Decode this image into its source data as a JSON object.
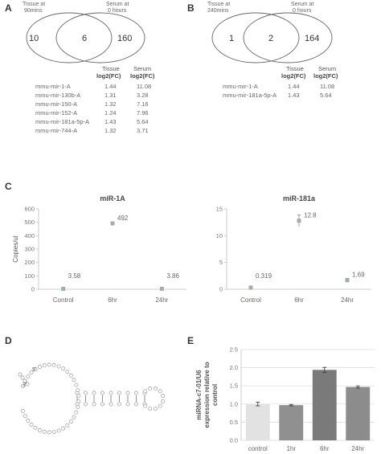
{
  "panels": {
    "A": {
      "letter": "A",
      "left_label_line1": "Tissue at",
      "left_label_line2": "90mins",
      "right_label_line1": "Serum at",
      "right_label_line2": "0 hours",
      "left_only": "10",
      "overlap": "6",
      "right_only": "160",
      "table": {
        "col1_line1": "Tissue",
        "col1_line2": "log2(FC)",
        "col2_line1": "Serum",
        "col2_line2": "log2(FC)",
        "rows": [
          {
            "name": "mmu-mir-1-A",
            "tissue": "1.44",
            "serum": "11.08"
          },
          {
            "name": "mmu-mir-130b-A",
            "tissue": "1.31",
            "serum": "3.28"
          },
          {
            "name": "mmu-mir-150-A",
            "tissue": "1.32",
            "serum": "7.16"
          },
          {
            "name": "mmu-mir-152-A",
            "tissue": "1.24",
            "serum": "7.96"
          },
          {
            "name": "mmu-mir-181a-5p-A",
            "tissue": "1.43",
            "serum": "5.64"
          },
          {
            "name": "mmu-mir-744-A",
            "tissue": "1.32",
            "serum": "3.71"
          }
        ]
      }
    },
    "B": {
      "letter": "B",
      "left_label_line1": "Tissue at",
      "left_label_line2": "240mins",
      "right_label_line1": "Serum at",
      "right_label_line2": "0 hours",
      "left_only": "1",
      "overlap": "2",
      "right_only": "164",
      "table": {
        "col1_line1": "Tissue",
        "col1_line2": "log2(FC)",
        "col2_line1": "Serum",
        "col2_line2": "log2(FC)",
        "rows": [
          {
            "name": "mmu-mir-1-A",
            "tissue": "1.44",
            "serum": "11.08"
          },
          {
            "name": "mmu-mir-181a-5p-A",
            "tissue": "1.43",
            "serum": "5.64"
          }
        ]
      }
    },
    "C": {
      "letter": "C"
    },
    "D": {
      "letter": "D",
      "label_5": "5'",
      "label_3": "3'"
    },
    "E": {
      "letter": "E"
    }
  },
  "chart_data": [
    {
      "type": "scatter",
      "title": "miR-1A",
      "ylabel": "Copies/ul",
      "xlabel": "",
      "categories": [
        "Control",
        "6hr",
        "24hr"
      ],
      "values": [
        3.58,
        492,
        3.86
      ],
      "value_labels": [
        "3.58",
        "492",
        "3.86"
      ],
      "error": [
        1,
        8,
        1
      ],
      "ylim": [
        0,
        600
      ],
      "yticks": [
        "0",
        "100",
        "200",
        "300",
        "400",
        "500",
        "600"
      ],
      "grid": false,
      "color": "#9fb0a3"
    },
    {
      "type": "scatter",
      "title": "miR-181a",
      "ylabel": "",
      "xlabel": "",
      "categories": [
        "Control",
        "6hr",
        "24hr"
      ],
      "values": [
        0.319,
        12.8,
        1.69
      ],
      "value_labels": [
        "0.319",
        "12.8",
        "1.69"
      ],
      "error": [
        0.1,
        1.1,
        0.35
      ],
      "ylim": [
        0,
        15
      ],
      "yticks": [
        "0",
        "5",
        "10",
        "15"
      ],
      "grid": false,
      "color": "#9fb0a3"
    },
    {
      "type": "bar",
      "title": "",
      "ylabel_line1": "miRNA-c7-01/U6",
      "ylabel_line2": "expression relative to",
      "ylabel_line3": "control",
      "xlabel": "",
      "categories": [
        "control",
        "1hr",
        "6hr",
        "24hr"
      ],
      "values": [
        1.0,
        0.97,
        1.94,
        1.47
      ],
      "error": [
        0.05,
        0.02,
        0.07,
        0.03
      ],
      "ylim": [
        0,
        2.5
      ],
      "yticks": [
        "0.0",
        "0.5",
        "1.0",
        "1.5",
        "2.0",
        "2.5"
      ],
      "grid": true,
      "colors": [
        "#e2e2e2",
        "#909090",
        "#7a7a7a",
        "#8c8c8c"
      ]
    }
  ]
}
